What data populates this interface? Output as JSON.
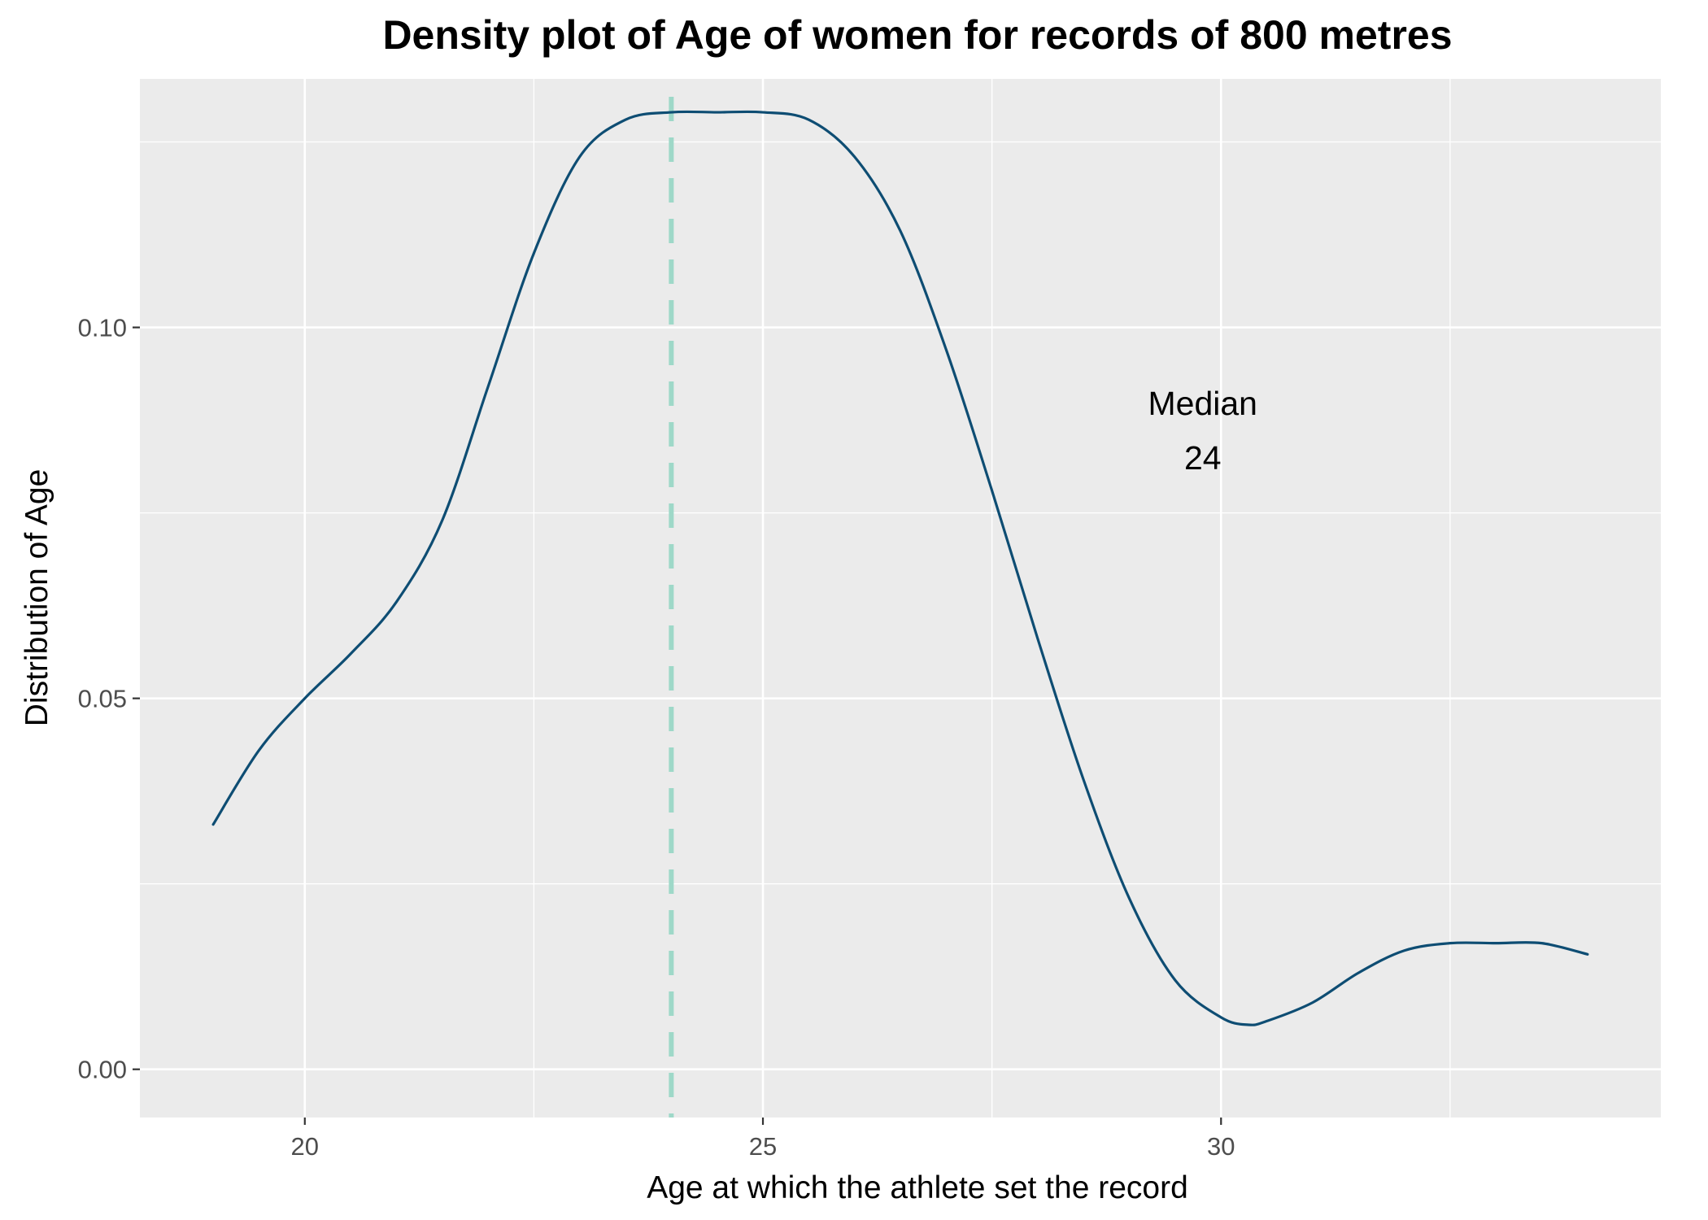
{
  "chart_data": {
    "type": "line",
    "title": "Density plot of Age of women for records of 800 metres",
    "xlabel": "Age at which the athlete set the record",
    "ylabel": "Distribution of Age",
    "xlim": [
      18.2,
      34.8
    ],
    "ylim": [
      -0.0065,
      0.1335
    ],
    "x_ticks": [
      20,
      25,
      30
    ],
    "x_tick_labels": [
      "20",
      "25",
      "30"
    ],
    "y_ticks": [
      0.0,
      0.05,
      0.1
    ],
    "y_tick_labels": [
      "0.00",
      "0.05",
      "0.10"
    ],
    "grid": true,
    "background_color": "#ebebeb",
    "grid_color": "#ffffff",
    "series": [
      {
        "color": "#0e4d73",
        "x": [
          19.0,
          19.5,
          20.0,
          20.5,
          21.0,
          21.5,
          22.0,
          22.5,
          23.0,
          23.5,
          24.0,
          24.5,
          25.0,
          25.5,
          26.0,
          26.5,
          27.0,
          27.5,
          28.0,
          28.5,
          29.0,
          29.5,
          30.0,
          30.3,
          30.5,
          31.0,
          31.5,
          32.0,
          32.5,
          33.0,
          33.5,
          34.0
        ],
        "y": [
          0.033,
          0.043,
          0.05,
          0.056,
          0.063,
          0.074,
          0.092,
          0.11,
          0.123,
          0.128,
          0.129,
          0.129,
          0.129,
          0.128,
          0.123,
          0.113,
          0.097,
          0.078,
          0.058,
          0.039,
          0.023,
          0.012,
          0.007,
          0.006,
          0.0065,
          0.009,
          0.013,
          0.016,
          0.017,
          0.017,
          0.017,
          0.0155
        ]
      }
    ],
    "reference_line": {
      "x": 24,
      "style": "dashed",
      "color": "#9ed8c8"
    },
    "annotation": {
      "line1": "Median",
      "line2": "24",
      "x": 29.8,
      "y": 0.087
    }
  }
}
